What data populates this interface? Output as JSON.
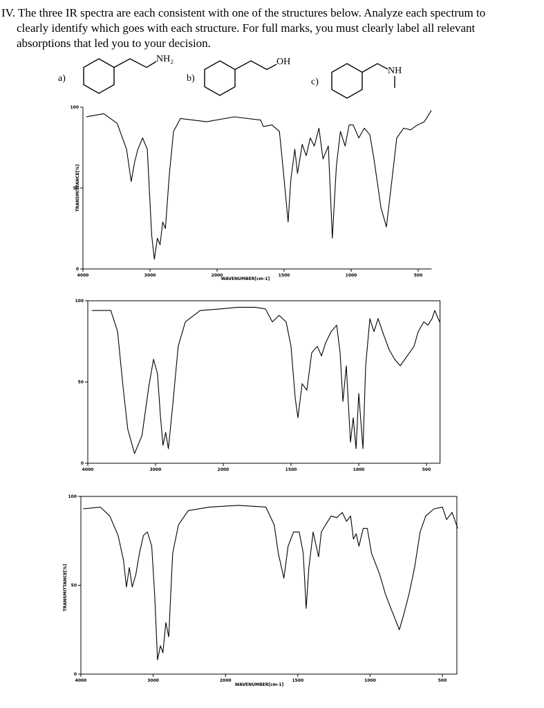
{
  "question": {
    "lines": [
      "IV. The three IR spectra are each consistent with one of the structures below.  Analyze each spectrum to",
      "clearly identify which goes with each structure. For full marks, you must clearly label all relevant",
      "absorptions that led you to your decision."
    ]
  },
  "structures": [
    {
      "label": "a)",
      "group": "NH₂"
    },
    {
      "label": "b)",
      "group": "OH"
    },
    {
      "label": "c)",
      "group": "NH"
    }
  ],
  "chart_data": [
    {
      "type": "line",
      "color": "#000000",
      "xlim": [
        4000,
        400
      ],
      "ylim": [
        0,
        100
      ],
      "xticks": [
        4000,
        3000,
        2000,
        1500,
        1000,
        500
      ],
      "yticks": [
        0,
        50,
        100
      ],
      "xlabel": "WAVENUMBER[cm-1]",
      "ylabel": "TRANSMITTANCE[%]",
      "x": [
        3950,
        3690,
        3490,
        3350,
        3280,
        3230,
        3180,
        3110,
        3040,
        2975,
        2935,
        2890,
        2850,
        2810,
        2770,
        2710,
        2650,
        2545,
        2155,
        1871,
        1675,
        1655,
        1590,
        1535,
        1510,
        1470,
        1450,
        1420,
        1400,
        1365,
        1335,
        1305,
        1275,
        1240,
        1210,
        1170,
        1140,
        1110,
        1080,
        1045,
        1015,
        985,
        943,
        902,
        861,
        830,
        778,
        737,
        696,
        660,
        608,
        557,
        505,
        454,
        402
      ],
      "values": [
        94,
        96,
        90,
        74,
        54,
        66,
        74,
        81,
        74,
        21,
        6,
        19,
        15,
        29,
        25,
        59,
        85,
        93,
        91,
        94,
        92,
        88,
        89,
        85,
        64,
        29,
        55,
        74,
        59,
        77,
        70,
        81,
        76,
        87,
        68,
        76,
        19,
        64,
        85,
        76,
        89,
        89,
        81,
        87,
        83,
        68,
        38,
        26,
        55,
        81,
        87,
        86,
        89,
        91,
        98
      ]
    },
    {
      "type": "line",
      "color": "#000000",
      "xlim": [
        4000,
        400
      ],
      "ylim": [
        0,
        100
      ],
      "xticks": [
        4000,
        3000,
        2000,
        1500,
        1000,
        500
      ],
      "yticks": [
        0,
        50,
        100
      ],
      "x": [
        3940,
        3660,
        3560,
        3480,
        3410,
        3310,
        3200,
        3100,
        3030,
        2970,
        2930,
        2890,
        2850,
        2810,
        2750,
        2665,
        2560,
        2340,
        2040,
        1893,
        1765,
        1689,
        1638,
        1587,
        1536,
        1500,
        1469,
        1449,
        1418,
        1383,
        1347,
        1306,
        1275,
        1245,
        1204,
        1163,
        1138,
        1117,
        1092,
        1061,
        1041,
        1020,
        1000,
        969,
        949,
        918,
        888,
        857,
        816,
        776,
        735,
        694,
        643,
        592,
        561,
        520,
        490,
        459,
        439,
        403
      ],
      "values": [
        94,
        94,
        81,
        47,
        21,
        6,
        17,
        47,
        64,
        55,
        30,
        11,
        19,
        9,
        34,
        72,
        87,
        94,
        95,
        96,
        96,
        95,
        87,
        91,
        87,
        72,
        40,
        28,
        49,
        45,
        68,
        72,
        66,
        74,
        81,
        85,
        68,
        38,
        60,
        13,
        28,
        9,
        43,
        9,
        60,
        89,
        81,
        89,
        79,
        70,
        64,
        60,
        66,
        72,
        81,
        87,
        85,
        89,
        94,
        87
      ]
    },
    {
      "type": "line",
      "color": "#000000",
      "xlim": [
        4000,
        400
      ],
      "ylim": [
        0,
        100
      ],
      "xticks": [
        4000,
        3000,
        2000,
        1500,
        1000,
        500
      ],
      "yticks": [
        0,
        50,
        100
      ],
      "xlabel": "WAVENUMBER[cm-1]",
      "ylabel": "TRANSMITTANCE[%]",
      "x": [
        3970,
        3730,
        3600,
        3485,
        3410,
        3370,
        3330,
        3290,
        3240,
        3190,
        3135,
        3080,
        3020,
        2980,
        2940,
        2900,
        2865,
        2825,
        2785,
        2730,
        2650,
        2515,
        2225,
        1913,
        1721,
        1663,
        1635,
        1596,
        1567,
        1529,
        1490,
        1462,
        1442,
        1423,
        1394,
        1356,
        1337,
        1308,
        1269,
        1231,
        1192,
        1163,
        1135,
        1115,
        1096,
        1077,
        1048,
        1019,
        990,
        933,
        894,
        856,
        817,
        798,
        769,
        731,
        692,
        654,
        615,
        558,
        500,
        471,
        433,
        394
      ],
      "values": [
        93,
        94,
        89,
        78,
        64,
        49,
        60,
        49,
        56,
        68,
        78,
        80,
        72,
        45,
        8,
        16,
        12,
        29,
        21,
        68,
        84,
        92,
        94,
        95,
        94,
        84,
        68,
        54,
        72,
        80,
        80,
        68,
        37,
        60,
        80,
        66,
        80,
        84,
        89,
        88,
        91,
        86,
        89,
        76,
        79,
        72,
        82,
        82,
        68,
        56,
        45,
        37,
        29,
        25,
        33,
        45,
        60,
        80,
        89,
        93,
        94,
        87,
        91,
        82
      ]
    }
  ]
}
